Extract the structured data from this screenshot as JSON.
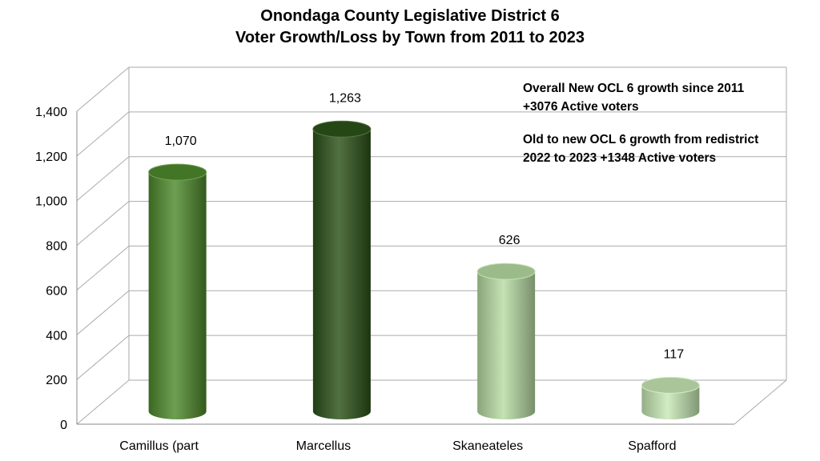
{
  "chart_data": {
    "type": "bar",
    "title_lines": [
      "Onondaga County Legislative District 6",
      "Voter Growth/Loss by Town from 2011 to 2023"
    ],
    "categories": [
      "Camillus (part",
      "Marcellus",
      "Skaneateles",
      "Spafford"
    ],
    "values": [
      1070,
      1263,
      626,
      117
    ],
    "value_labels": [
      "1,070",
      "1,263",
      "626",
      "117"
    ],
    "ylim": [
      0,
      1400
    ],
    "yticks": [
      0,
      200,
      400,
      600,
      800,
      1000,
      1200,
      1400
    ],
    "ytick_labels": [
      "0",
      "200",
      "400",
      "600",
      "800",
      "1,000",
      "1,200",
      "1,400"
    ],
    "xlabel": "",
    "ylabel": "",
    "grid": true,
    "style": "3d-cylinder",
    "bar_colors": [
      "#4e8a2c",
      "#2c5219",
      "#b7dca3",
      "#c7e8b4"
    ],
    "annotations": [
      "Overall New OCL 6  growth since 2011 +3076 Active voters",
      "Old to new OCL 6  growth from redistrict 2022 to 2023 +1348 Active voters"
    ]
  }
}
